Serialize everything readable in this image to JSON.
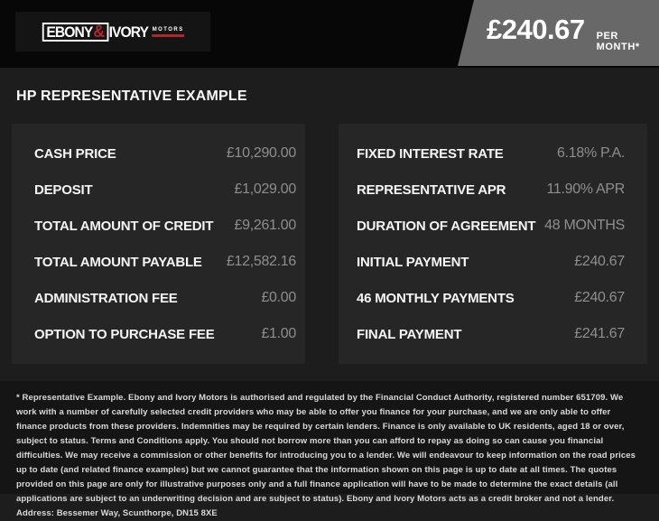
{
  "header": {
    "logo": {
      "word1": "EBONY",
      "ampersand": "&",
      "word2": "IVORY",
      "subtext": "MOTORS"
    },
    "price_banner": {
      "amount": "£240.67",
      "suffix": "PER MONTH*"
    }
  },
  "title": "HP REPRESENTATIVE EXAMPLE",
  "finance_table": {
    "left_rows": [
      {
        "label": "CASH PRICE",
        "value": "£10,290.00"
      },
      {
        "label": "DEPOSIT",
        "value": "£1,029.00"
      },
      {
        "label": "TOTAL AMOUNT OF CREDIT",
        "value": "£9,261.00"
      },
      {
        "label": "TOTAL AMOUNT PAYABLE",
        "value": "£12,582.16"
      },
      {
        "label": "ADMINISTRATION FEE",
        "value": "£0.00"
      },
      {
        "label": "OPTION TO PURCHASE FEE",
        "value": "£1.00"
      }
    ],
    "right_rows": [
      {
        "label": "FIXED INTEREST RATE",
        "value": "6.18% P.A."
      },
      {
        "label": "REPRESENTATIVE APR",
        "value": "11.90% APR"
      },
      {
        "label": "DURATION OF AGREEMENT",
        "value": "48 MONTHS"
      },
      {
        "label": "INITIAL PAYMENT",
        "value": "£240.67"
      },
      {
        "label": "46 MONTHLY PAYMENTS",
        "value": "£240.67"
      },
      {
        "label": "FINAL PAYMENT",
        "value": "£241.67"
      }
    ]
  },
  "disclaimer": "* Representative Example. Ebony and Ivory Motors is authorised and regulated by the Financial Conduct Authority, registered number 651709. We work with a number of carefully selected credit providers who may be able to offer you finance for your purchase, and we are only able to offer finance products from these providers. Indemnities may be required by certain lenders. Finance is only available to UK residents, aged 18 or over, subject to status. Terms and Conditions apply. You should not borrow more than you can afford to repay as doing so can cause you financial difficulties. We may receive a commission or other benefits for introducing you to a lender. We will endeavour to keep information on the road prices up to date (and related finance examples) but we cannot guarantee that the information shown on this page is up to date at all times. The quotes provided on this page are only for illustrative purposes only and a full finance application will have to be made to determine the exact details (all applications are subject to an underwriting decision and are subject to status). Ebony and Ivory Motors acts as a credit broker and not a lender. Address: Bessemer Way, Scunthorpe, DN15 8XE",
  "colors": {
    "brand_red": "#b1272c",
    "banner_gray": "#686868",
    "header_black": "#070707",
    "body_bg": "#1d1d1d",
    "panel_bg": "#262626",
    "footer_bg": "#151515",
    "label_white": "#f5f5f5",
    "value_gray": "#8e8e8e"
  }
}
